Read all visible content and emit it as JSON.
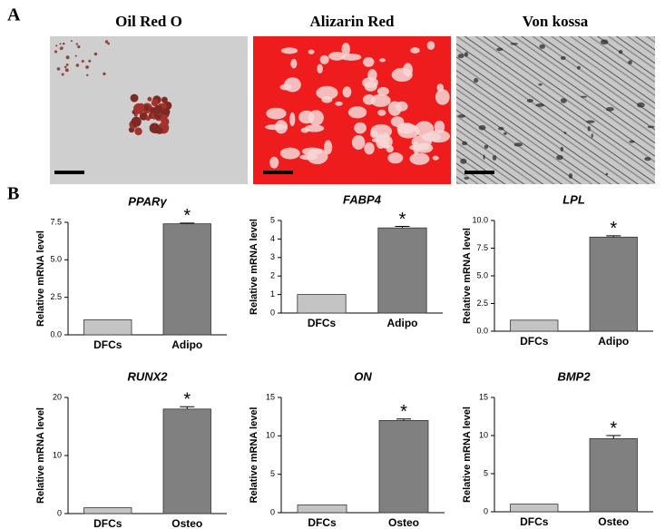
{
  "panel_labels": [
    "A",
    "B"
  ],
  "images": [
    {
      "title": "Oil Red O"
    },
    {
      "title": "Alizarin Red"
    },
    {
      "title": "Von kossa"
    }
  ],
  "chart_data": [
    {
      "type": "bar",
      "title": "PPARγ",
      "y_label": "Relative mRNA level",
      "categories": [
        "DFCs",
        "Adipo"
      ],
      "values": [
        1,
        7.4
      ],
      "errors": [
        null,
        0.05
      ],
      "colors": [
        "#c4c4c4",
        "#808080"
      ],
      "annotation": "*",
      "ylim": [
        0,
        7.5
      ],
      "yticks": [
        {
          "value": 0,
          "label": "0.0"
        },
        {
          "value": 2.5,
          "label": "2.5"
        },
        {
          "value": 5,
          "label": "5.0"
        },
        {
          "value": 7.5,
          "label": "7.5"
        }
      ]
    },
    {
      "type": "bar",
      "title": "FABP4",
      "y_label": "Relative mRNA level",
      "categories": [
        "DFCs",
        "Adipo"
      ],
      "values": [
        1,
        4.6
      ],
      "errors": [
        null,
        0.08
      ],
      "colors": [
        "#c4c4c4",
        "#808080"
      ],
      "annotation": "*",
      "ylim": [
        0,
        5
      ],
      "yticks": [
        0,
        1,
        2,
        3,
        4,
        5
      ]
    },
    {
      "type": "bar",
      "title": "LPL",
      "y_label": "Relative mRNA level",
      "categories": [
        "DFCs",
        "Adipo"
      ],
      "values": [
        1,
        8.5
      ],
      "errors": [
        null,
        0.12
      ],
      "colors": [
        "#c4c4c4",
        "#808080"
      ],
      "annotation": "*",
      "ylim": [
        0,
        10
      ],
      "yticks": [
        {
          "value": 0,
          "label": "0.0"
        },
        {
          "value": 2.5,
          "label": "2.5"
        },
        {
          "value": 5,
          "label": "5.0"
        },
        {
          "value": 7.5,
          "label": "7.5"
        },
        {
          "value": 10,
          "label": "10.0"
        }
      ]
    },
    {
      "type": "bar",
      "title": "RUNX2",
      "y_label": "Relative mRNA level",
      "categories": [
        "DFCs",
        "Osteo"
      ],
      "values": [
        1,
        18
      ],
      "errors": [
        null,
        0.4
      ],
      "colors": [
        "#c4c4c4",
        "#808080"
      ],
      "annotation": "*",
      "ylim": [
        0,
        20
      ],
      "yticks": [
        0,
        10,
        20
      ]
    },
    {
      "type": "bar",
      "title": "ON",
      "y_label": "Relative mRNA level",
      "categories": [
        "DFCs",
        "Osteo"
      ],
      "values": [
        1,
        12
      ],
      "errors": [
        null,
        0.2
      ],
      "colors": [
        "#c4c4c4",
        "#808080"
      ],
      "annotation": "*",
      "ylim": [
        0,
        15
      ],
      "yticks": [
        0,
        5,
        10,
        15
      ]
    },
    {
      "type": "bar",
      "title": "BMP2",
      "y_label": "Relative mRNA level",
      "categories": [
        "DFCs",
        "Osteo"
      ],
      "values": [
        1,
        9.6
      ],
      "errors": [
        null,
        0.4
      ],
      "colors": [
        "#c4c4c4",
        "#808080"
      ],
      "annotation": "*",
      "ylim": [
        0,
        15
      ],
      "yticks": [
        0,
        5,
        10,
        15
      ]
    }
  ]
}
